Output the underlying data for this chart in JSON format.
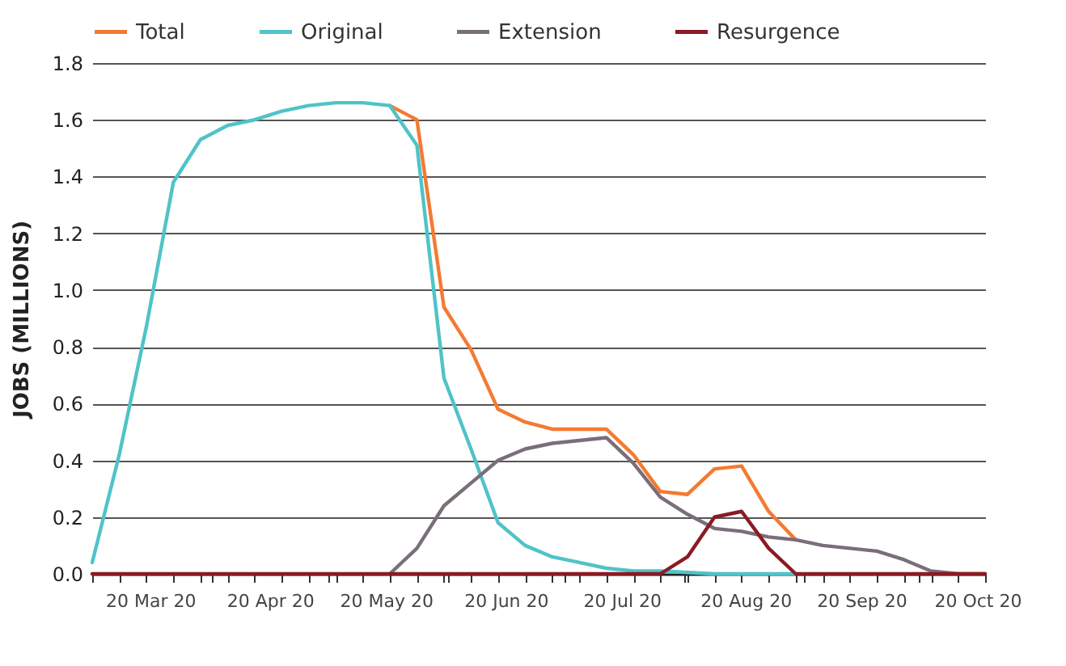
{
  "chart_data": {
    "type": "line",
    "ylabel": "JOBS (MILLIONS)",
    "x": [
      "--03-01",
      "--03-08",
      "--03-15",
      "--03-22",
      "--03-29",
      "--04-05",
      "--04-12",
      "--04-19",
      "--04-26",
      "--05-03",
      "--05-10",
      "--05-17",
      "--05-24",
      "--05-31",
      "--06-07",
      "--06-14",
      "--06-21",
      "--06-28",
      "--07-05",
      "--07-12",
      "--07-19",
      "--07-26",
      "--08-02",
      "--08-09",
      "--08-16",
      "--08-23",
      "--08-30",
      "--09-06",
      "--09-13",
      "--09-20",
      "--09-27",
      "--10-04",
      "--10-11",
      "--10-18"
    ],
    "series": [
      {
        "name": "Total",
        "color": "#f47a32",
        "values": [
          null,
          null,
          null,
          null,
          null,
          null,
          null,
          null,
          null,
          null,
          null,
          1.65,
          1.6,
          0.94,
          0.79,
          0.58,
          0.535,
          0.51,
          0.51,
          0.51,
          0.42,
          0.29,
          0.28,
          0.37,
          0.38,
          0.22,
          0.12,
          null,
          null,
          null,
          null,
          null,
          null,
          null
        ]
      },
      {
        "name": "Original",
        "color": "#4fc3c8",
        "values": [
          0.04,
          0.42,
          0.87,
          1.38,
          1.53,
          1.58,
          1.6,
          1.63,
          1.65,
          1.66,
          1.66,
          1.65,
          1.51,
          0.69,
          0.44,
          0.18,
          0.1,
          0.06,
          0.04,
          0.02,
          0.01,
          0.01,
          0.005,
          0,
          0,
          0,
          0,
          null,
          null,
          null,
          null,
          null,
          null,
          null
        ]
      },
      {
        "name": "Extension",
        "color": "#7a6e7a",
        "values": [
          null,
          null,
          null,
          null,
          null,
          null,
          null,
          null,
          null,
          null,
          null,
          0,
          0.09,
          0.24,
          0.32,
          0.4,
          0.44,
          0.46,
          0.47,
          0.48,
          0.39,
          0.27,
          0.21,
          0.16,
          0.15,
          0.13,
          0.12,
          0.1,
          0.09,
          0.08,
          0.05,
          0.01,
          0,
          0
        ]
      },
      {
        "name": "Resurgence",
        "color": "#8b1a24",
        "values": [
          0,
          0,
          0,
          0,
          0,
          0,
          0,
          0,
          0,
          0,
          0,
          0,
          0,
          0,
          0,
          0,
          0,
          0,
          0,
          0,
          0,
          0,
          0.06,
          0.2,
          0.22,
          0.09,
          0,
          0,
          0,
          0,
          0,
          0,
          0,
          0
        ]
      }
    ],
    "xlim": [
      "--03-01",
      "--10-18"
    ],
    "xticks": [
      {
        "value": "--03-01",
        "label": null
      },
      {
        "value": "--03-08",
        "label": null
      },
      {
        "value": "--03-15",
        "label": null
      },
      {
        "value": "--03-22",
        "label": null
      },
      {
        "value": "--03-29",
        "label": null
      },
      {
        "value": "--04-05",
        "label": null
      },
      {
        "value": "--04-12",
        "label": null
      },
      {
        "value": "--04-19",
        "label": null
      },
      {
        "value": "--04-26",
        "label": null
      },
      {
        "value": "--05-03",
        "label": null
      },
      {
        "value": "--05-10",
        "label": null
      },
      {
        "value": "--05-17",
        "label": null
      },
      {
        "value": "--05-24",
        "label": null
      },
      {
        "value": "--05-31",
        "label": null
      },
      {
        "value": "--06-07",
        "label": null
      },
      {
        "value": "--06-14",
        "label": null
      },
      {
        "value": "--06-21",
        "label": null
      },
      {
        "value": "--06-28",
        "label": null
      },
      {
        "value": "--07-05",
        "label": null
      },
      {
        "value": "--07-12",
        "label": null
      },
      {
        "value": "--07-19",
        "label": null
      },
      {
        "value": "--07-26",
        "label": null
      },
      {
        "value": "--08-02",
        "label": null
      },
      {
        "value": "--08-09",
        "label": null
      },
      {
        "value": "--08-16",
        "label": null
      },
      {
        "value": "--08-23",
        "label": null
      },
      {
        "value": "--08-30",
        "label": null
      },
      {
        "value": "--09-06",
        "label": null
      },
      {
        "value": "--09-13",
        "label": null
      },
      {
        "value": "--09-20",
        "label": null
      },
      {
        "value": "--09-27",
        "label": null
      },
      {
        "value": "--10-04",
        "label": null
      },
      {
        "value": "--10-11",
        "label": null
      },
      {
        "value": "--10-18",
        "label": null
      },
      {
        "value": "--04-01",
        "label": null
      },
      {
        "value": "--05-01",
        "label": null
      },
      {
        "value": "--06-01",
        "label": null
      },
      {
        "value": "--07-01",
        "label": null
      },
      {
        "value": "--08-01",
        "label": null
      },
      {
        "value": "--09-01",
        "label": null
      },
      {
        "value": "--10-01",
        "label": null
      },
      {
        "value": "--03-16",
        "label": "20 Mar 20"
      },
      {
        "value": "--04-16",
        "label": "20 Apr 20"
      },
      {
        "value": "--05-16",
        "label": "20 May 20"
      },
      {
        "value": "--06-16",
        "label": "20 Jun 20"
      },
      {
        "value": "--07-16",
        "label": "20 Jul 20"
      },
      {
        "value": "--08-17",
        "label": "20 Aug 20"
      },
      {
        "value": "--09-16",
        "label": "20 Sep 20"
      },
      {
        "value": "--10-16",
        "label": "20 Oct 20"
      }
    ],
    "ylim": [
      0,
      1.8
    ],
    "yticks": [
      {
        "value": 0,
        "label": "0.0"
      },
      {
        "value": 0.2,
        "label": "0.2"
      },
      {
        "value": 0.4,
        "label": "0.4"
      },
      {
        "value": 0.6,
        "label": "0.6"
      },
      {
        "value": 0.8,
        "label": "0.8"
      },
      {
        "value": 1,
        "label": "1.0"
      },
      {
        "value": 1.2,
        "label": "1.2"
      },
      {
        "value": 1.4,
        "label": "1.4"
      },
      {
        "value": 1.6,
        "label": "1.6"
      },
      {
        "value": 1.8,
        "label": "1.8"
      }
    ],
    "grid": "y",
    "legend": "top",
    "marker": "none",
    "line_style": "solid"
  }
}
